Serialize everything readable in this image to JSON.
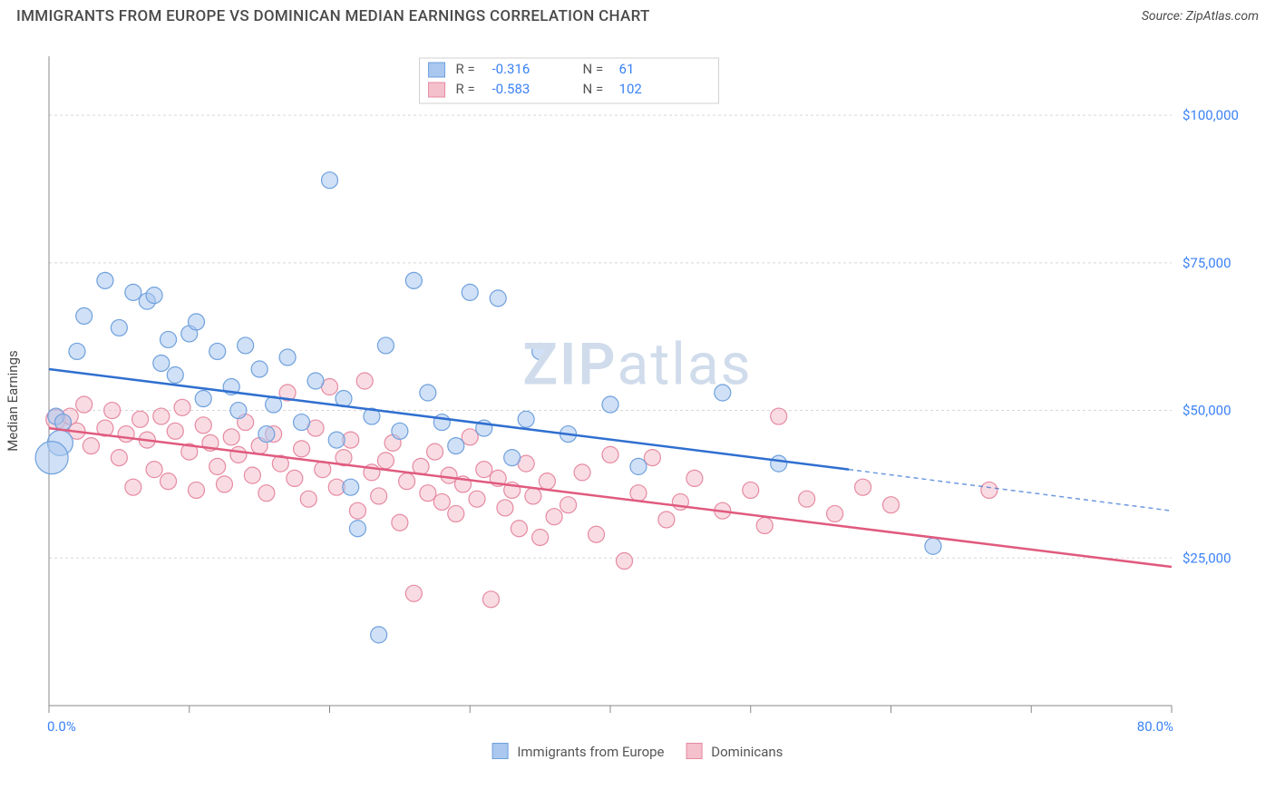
{
  "title": "IMMIGRANTS FROM EUROPE VS DOMINICAN MEDIAN EARNINGS CORRELATION CHART",
  "source_label": "Source:",
  "source_name": "ZipAtlas.com",
  "ylabel": "Median Earnings",
  "watermark_a": "ZIP",
  "watermark_b": "atlas",
  "chart": {
    "type": "scatter",
    "xlim": [
      0,
      80
    ],
    "ylim": [
      0,
      110000
    ],
    "y_gridlines": [
      25000,
      50000,
      75000,
      100000
    ],
    "y_tick_labels": [
      "$25,000",
      "$50,000",
      "$75,000",
      "$100,000"
    ],
    "x_ticks": [
      0,
      10,
      20,
      30,
      40,
      50,
      60,
      70,
      80
    ],
    "x_tick_labels_shown": {
      "0": "0.0%",
      "80": "80.0%"
    },
    "background_color": "#ffffff",
    "grid_color": "#d8d8d8",
    "axis_color": "#888888"
  },
  "series": [
    {
      "key": "europe",
      "label": "Immigrants from Europe",
      "fill": "#a9c7ef",
      "stroke": "#6fa1dd",
      "line_color": "#2f6fd0",
      "R": "-0.316",
      "N": "61",
      "regression": {
        "x1": 0,
        "y1": 57000,
        "x2": 57,
        "y2": 40000,
        "ext_x2": 80,
        "ext_y2": 33000
      },
      "points": [
        {
          "x": 0.5,
          "y": 49000,
          "r": 9
        },
        {
          "x": 1.0,
          "y": 48000,
          "r": 9
        },
        {
          "x": 0.8,
          "y": 44500,
          "r": 14
        },
        {
          "x": 0.2,
          "y": 42000,
          "r": 18
        },
        {
          "x": 2.0,
          "y": 60000,
          "r": 9
        },
        {
          "x": 2.5,
          "y": 66000,
          "r": 9
        },
        {
          "x": 4.0,
          "y": 72000,
          "r": 9
        },
        {
          "x": 5.0,
          "y": 64000,
          "r": 9
        },
        {
          "x": 6.0,
          "y": 70000,
          "r": 9
        },
        {
          "x": 7.0,
          "y": 68500,
          "r": 9
        },
        {
          "x": 7.5,
          "y": 69500,
          "r": 9
        },
        {
          "x": 8.0,
          "y": 58000,
          "r": 9
        },
        {
          "x": 8.5,
          "y": 62000,
          "r": 9
        },
        {
          "x": 9.0,
          "y": 56000,
          "r": 9
        },
        {
          "x": 10.0,
          "y": 63000,
          "r": 9
        },
        {
          "x": 10.5,
          "y": 65000,
          "r": 9
        },
        {
          "x": 11.0,
          "y": 52000,
          "r": 9
        },
        {
          "x": 12.0,
          "y": 60000,
          "r": 9
        },
        {
          "x": 13.0,
          "y": 54000,
          "r": 9
        },
        {
          "x": 13.5,
          "y": 50000,
          "r": 9
        },
        {
          "x": 14.0,
          "y": 61000,
          "r": 9
        },
        {
          "x": 15.0,
          "y": 57000,
          "r": 9
        },
        {
          "x": 15.5,
          "y": 46000,
          "r": 9
        },
        {
          "x": 16.0,
          "y": 51000,
          "r": 9
        },
        {
          "x": 17.0,
          "y": 59000,
          "r": 9
        },
        {
          "x": 18.0,
          "y": 48000,
          "r": 9
        },
        {
          "x": 19.0,
          "y": 55000,
          "r": 9
        },
        {
          "x": 20.0,
          "y": 89000,
          "r": 9
        },
        {
          "x": 20.5,
          "y": 45000,
          "r": 9
        },
        {
          "x": 21.0,
          "y": 52000,
          "r": 9
        },
        {
          "x": 21.5,
          "y": 37000,
          "r": 9
        },
        {
          "x": 22.0,
          "y": 30000,
          "r": 9
        },
        {
          "x": 23.0,
          "y": 49000,
          "r": 9
        },
        {
          "x": 23.5,
          "y": 12000,
          "r": 9
        },
        {
          "x": 24.0,
          "y": 61000,
          "r": 9
        },
        {
          "x": 25.0,
          "y": 46500,
          "r": 9
        },
        {
          "x": 26.0,
          "y": 72000,
          "r": 9
        },
        {
          "x": 27.0,
          "y": 53000,
          "r": 9
        },
        {
          "x": 28.0,
          "y": 48000,
          "r": 9
        },
        {
          "x": 29.0,
          "y": 44000,
          "r": 9
        },
        {
          "x": 30.0,
          "y": 70000,
          "r": 9
        },
        {
          "x": 31.0,
          "y": 47000,
          "r": 9
        },
        {
          "x": 32.0,
          "y": 69000,
          "r": 9
        },
        {
          "x": 33.0,
          "y": 42000,
          "r": 9
        },
        {
          "x": 34.0,
          "y": 48500,
          "r": 9
        },
        {
          "x": 35.0,
          "y": 60000,
          "r": 9
        },
        {
          "x": 37.0,
          "y": 46000,
          "r": 9
        },
        {
          "x": 40.0,
          "y": 51000,
          "r": 9
        },
        {
          "x": 42.0,
          "y": 40500,
          "r": 9
        },
        {
          "x": 48.0,
          "y": 53000,
          "r": 9
        },
        {
          "x": 52.0,
          "y": 41000,
          "r": 9
        },
        {
          "x": 63.0,
          "y": 27000,
          "r": 9
        }
      ]
    },
    {
      "key": "dominican",
      "label": "Dominicans",
      "fill": "#f4c0cc",
      "stroke": "#e68aa2",
      "line_color": "#e05a7e",
      "R": "-0.583",
      "N": "102",
      "regression": {
        "x1": 0,
        "y1": 47000,
        "x2": 80,
        "y2": 23500
      },
      "points": [
        {
          "x": 0.5,
          "y": 48500,
          "r": 11
        },
        {
          "x": 1.0,
          "y": 48000,
          "r": 9
        },
        {
          "x": 1.5,
          "y": 49000,
          "r": 9
        },
        {
          "x": 2.0,
          "y": 46500,
          "r": 9
        },
        {
          "x": 2.5,
          "y": 51000,
          "r": 9
        },
        {
          "x": 3.0,
          "y": 44000,
          "r": 9
        },
        {
          "x": 4.0,
          "y": 47000,
          "r": 9
        },
        {
          "x": 4.5,
          "y": 50000,
          "r": 9
        },
        {
          "x": 5.0,
          "y": 42000,
          "r": 9
        },
        {
          "x": 5.5,
          "y": 46000,
          "r": 9
        },
        {
          "x": 6.0,
          "y": 37000,
          "r": 9
        },
        {
          "x": 6.5,
          "y": 48500,
          "r": 9
        },
        {
          "x": 7.0,
          "y": 45000,
          "r": 9
        },
        {
          "x": 7.5,
          "y": 40000,
          "r": 9
        },
        {
          "x": 8.0,
          "y": 49000,
          "r": 9
        },
        {
          "x": 8.5,
          "y": 38000,
          "r": 9
        },
        {
          "x": 9.0,
          "y": 46500,
          "r": 9
        },
        {
          "x": 9.5,
          "y": 50500,
          "r": 9
        },
        {
          "x": 10.0,
          "y": 43000,
          "r": 9
        },
        {
          "x": 10.5,
          "y": 36500,
          "r": 9
        },
        {
          "x": 11.0,
          "y": 47500,
          "r": 9
        },
        {
          "x": 11.5,
          "y": 44500,
          "r": 9
        },
        {
          "x": 12.0,
          "y": 40500,
          "r": 9
        },
        {
          "x": 12.5,
          "y": 37500,
          "r": 9
        },
        {
          "x": 13.0,
          "y": 45500,
          "r": 9
        },
        {
          "x": 13.5,
          "y": 42500,
          "r": 9
        },
        {
          "x": 14.0,
          "y": 48000,
          "r": 9
        },
        {
          "x": 14.5,
          "y": 39000,
          "r": 9
        },
        {
          "x": 15.0,
          "y": 44000,
          "r": 9
        },
        {
          "x": 15.5,
          "y": 36000,
          "r": 9
        },
        {
          "x": 16.0,
          "y": 46000,
          "r": 9
        },
        {
          "x": 16.5,
          "y": 41000,
          "r": 9
        },
        {
          "x": 17.0,
          "y": 53000,
          "r": 9
        },
        {
          "x": 17.5,
          "y": 38500,
          "r": 9
        },
        {
          "x": 18.0,
          "y": 43500,
          "r": 9
        },
        {
          "x": 18.5,
          "y": 35000,
          "r": 9
        },
        {
          "x": 19.0,
          "y": 47000,
          "r": 9
        },
        {
          "x": 19.5,
          "y": 40000,
          "r": 9
        },
        {
          "x": 20.0,
          "y": 54000,
          "r": 9
        },
        {
          "x": 20.5,
          "y": 37000,
          "r": 9
        },
        {
          "x": 21.0,
          "y": 42000,
          "r": 9
        },
        {
          "x": 21.5,
          "y": 45000,
          "r": 9
        },
        {
          "x": 22.0,
          "y": 33000,
          "r": 9
        },
        {
          "x": 22.5,
          "y": 55000,
          "r": 9
        },
        {
          "x": 23.0,
          "y": 39500,
          "r": 9
        },
        {
          "x": 23.5,
          "y": 35500,
          "r": 9
        },
        {
          "x": 24.0,
          "y": 41500,
          "r": 9
        },
        {
          "x": 24.5,
          "y": 44500,
          "r": 9
        },
        {
          "x": 25.0,
          "y": 31000,
          "r": 9
        },
        {
          "x": 25.5,
          "y": 38000,
          "r": 9
        },
        {
          "x": 26.0,
          "y": 19000,
          "r": 9
        },
        {
          "x": 26.5,
          "y": 40500,
          "r": 9
        },
        {
          "x": 27.0,
          "y": 36000,
          "r": 9
        },
        {
          "x": 27.5,
          "y": 43000,
          "r": 9
        },
        {
          "x": 28.0,
          "y": 34500,
          "r": 9
        },
        {
          "x": 28.5,
          "y": 39000,
          "r": 9
        },
        {
          "x": 29.0,
          "y": 32500,
          "r": 9
        },
        {
          "x": 29.5,
          "y": 37500,
          "r": 9
        },
        {
          "x": 30.0,
          "y": 45500,
          "r": 9
        },
        {
          "x": 30.5,
          "y": 35000,
          "r": 9
        },
        {
          "x": 31.0,
          "y": 40000,
          "r": 9
        },
        {
          "x": 31.5,
          "y": 18000,
          "r": 9
        },
        {
          "x": 32.0,
          "y": 38500,
          "r": 9
        },
        {
          "x": 32.5,
          "y": 33500,
          "r": 9
        },
        {
          "x": 33.0,
          "y": 36500,
          "r": 9
        },
        {
          "x": 33.5,
          "y": 30000,
          "r": 9
        },
        {
          "x": 34.0,
          "y": 41000,
          "r": 9
        },
        {
          "x": 34.5,
          "y": 35500,
          "r": 9
        },
        {
          "x": 35.0,
          "y": 28500,
          "r": 9
        },
        {
          "x": 35.5,
          "y": 38000,
          "r": 9
        },
        {
          "x": 36.0,
          "y": 32000,
          "r": 9
        },
        {
          "x": 37.0,
          "y": 34000,
          "r": 9
        },
        {
          "x": 38.0,
          "y": 39500,
          "r": 9
        },
        {
          "x": 39.0,
          "y": 29000,
          "r": 9
        },
        {
          "x": 40.0,
          "y": 42500,
          "r": 9
        },
        {
          "x": 41.0,
          "y": 24500,
          "r": 9
        },
        {
          "x": 42.0,
          "y": 36000,
          "r": 9
        },
        {
          "x": 43.0,
          "y": 42000,
          "r": 9
        },
        {
          "x": 44.0,
          "y": 31500,
          "r": 9
        },
        {
          "x": 45.0,
          "y": 34500,
          "r": 9
        },
        {
          "x": 46.0,
          "y": 38500,
          "r": 9
        },
        {
          "x": 48.0,
          "y": 33000,
          "r": 9
        },
        {
          "x": 50.0,
          "y": 36500,
          "r": 9
        },
        {
          "x": 51.0,
          "y": 30500,
          "r": 9
        },
        {
          "x": 52.0,
          "y": 49000,
          "r": 9
        },
        {
          "x": 54.0,
          "y": 35000,
          "r": 9
        },
        {
          "x": 56.0,
          "y": 32500,
          "r": 9
        },
        {
          "x": 58.0,
          "y": 37000,
          "r": 9
        },
        {
          "x": 60.0,
          "y": 34000,
          "r": 9
        },
        {
          "x": 67.0,
          "y": 36500,
          "r": 9
        }
      ]
    }
  ],
  "legend_labels": {
    "R_prefix": "R =",
    "N_prefix": "N ="
  }
}
